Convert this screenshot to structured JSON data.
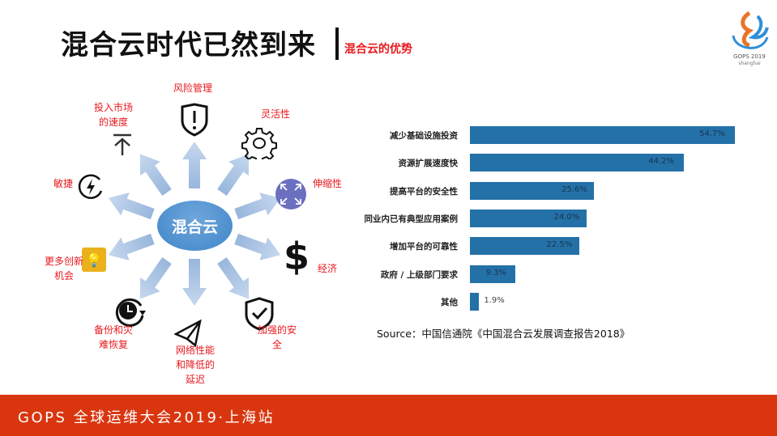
{
  "header": {
    "title": "混合云时代已然到来",
    "subtitle": "混合云的优势",
    "logo_text": "GOPS 2019 shanghai"
  },
  "diagram": {
    "center": "混合云",
    "items": [
      {
        "label": "风险管理",
        "icon": "shield-exclamation-icon"
      },
      {
        "label": "灵活性",
        "icon": "gear-icon"
      },
      {
        "label": "伸缩性",
        "icon": "expand-arrows-icon"
      },
      {
        "label": "经济",
        "icon": "dollar-icon"
      },
      {
        "label": "加强的安全",
        "icon": "shield-check-icon"
      },
      {
        "label": "网络性能和降低的延迟",
        "icon": "paper-plane-icon"
      },
      {
        "label": "备份和灾难恢复",
        "icon": "clock-refresh-icon"
      },
      {
        "label": "更多创新机会",
        "icon": "lightbulb-icon"
      },
      {
        "label": "敏捷",
        "icon": "lightning-circle-icon"
      },
      {
        "label": "投入市场的速度",
        "icon": "upload-arrow-icon"
      }
    ],
    "colors": {
      "label": "#e8191d",
      "arrow": "#a9c3e4",
      "hub": "#4a8dcc"
    }
  },
  "chart_data": {
    "type": "bar",
    "orientation": "horizontal",
    "categories": [
      "减少基础设施投资",
      "资源扩展速度快",
      "提高平台的安全性",
      "同业内已有典型应用案例",
      "增加平台的可靠性",
      "政府 / 上级部门要求",
      "其他"
    ],
    "values": [
      54.7,
      44.2,
      25.6,
      24.0,
      22.5,
      9.3,
      1.9
    ],
    "data_labels": [
      "54.7%",
      "44.2%",
      "25.6%",
      "24.0%",
      "22.5%",
      "9.3%",
      "1.9%"
    ],
    "color": "#2471a8",
    "grid": false
  },
  "source": "Source：中国信通院《中国混合云发展调查报告2018》",
  "footer": {
    "text": "GOPS 全球运维大会2019·上海站",
    "color": "#d9360f"
  }
}
